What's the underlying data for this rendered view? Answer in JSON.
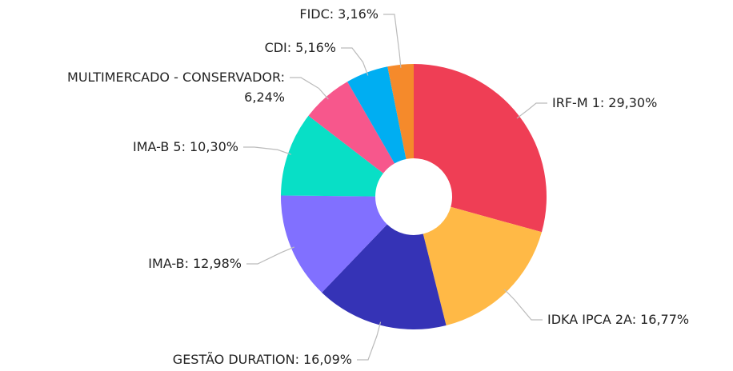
{
  "chart_data": {
    "type": "donut",
    "categories": [
      "IRF-M 1:",
      "IDKA IPCA 2A:",
      "GESTÃO DURATION:",
      "IMA-B:",
      "IMA-B 5:",
      "MULTIMERCADO - CONSERVADOR:",
      "CDI:",
      "FIDC:"
    ],
    "values": [
      29.3,
      16.77,
      16.09,
      12.98,
      10.3,
      6.24,
      5.16,
      3.16
    ],
    "value_labels": [
      "29,30%",
      "16,77%",
      "16,09%",
      "12,98%",
      "10,30%",
      "6,24%",
      "5,16%",
      "3,16%"
    ],
    "colors": [
      "#ef3e55",
      "#ffb946",
      "#3533b6",
      "#8170ff",
      "#08dfc6",
      "#f7578c",
      "#00aef2",
      "#f58a2b"
    ]
  }
}
